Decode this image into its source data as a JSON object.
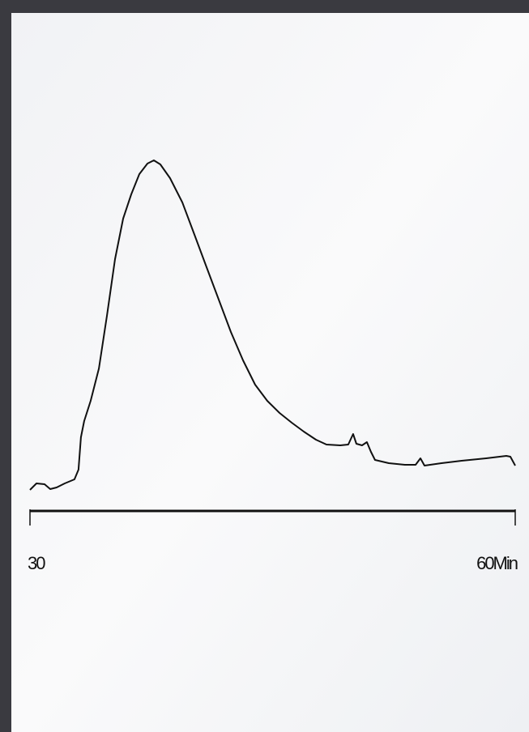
{
  "chart_data": {
    "type": "line",
    "x": [
      30.0,
      30.4,
      30.9,
      31.25,
      31.65,
      32.15,
      32.75,
      33.0,
      33.15,
      33.35,
      33.75,
      34.26,
      34.76,
      35.26,
      35.76,
      36.26,
      36.76,
      37.26,
      37.66,
      38.06,
      38.66,
      39.42,
      40.17,
      40.92,
      41.67,
      42.42,
      43.17,
      43.92,
      44.67,
      45.43,
      46.18,
      46.93,
      47.68,
      48.33,
      49.18,
      49.68,
      49.98,
      50.18,
      50.53,
      50.83,
      51.08,
      51.33,
      52.18,
      53.18,
      53.84,
      54.14,
      54.39,
      55.44,
      56.69,
      58.2,
      59.45,
      59.7,
      60.0
    ],
    "values": [
      5.2,
      6.8,
      6.6,
      5.4,
      5.8,
      6.8,
      7.8,
      10.2,
      18.2,
      22.2,
      27.2,
      35.2,
      48.2,
      62.2,
      72.2,
      78.2,
      83.2,
      85.8,
      86.6,
      85.6,
      82.2,
      76.2,
      68.2,
      60.2,
      52.2,
      44.2,
      37.2,
      31.2,
      27.2,
      24.2,
      21.8,
      19.6,
      17.6,
      16.4,
      16.2,
      16.4,
      19.0,
      16.6,
      16.2,
      17.0,
      14.6,
      12.6,
      11.8,
      11.4,
      11.4,
      13.0,
      11.2,
      11.8,
      12.4,
      13.0,
      13.6,
      13.4,
      11.2
    ],
    "color": "#111111",
    "xlim": [
      30,
      60
    ],
    "xticks": [
      30,
      {
        "value": 60,
        "label": "60Min"
      }
    ],
    "ylim": [
      0,
      100
    ]
  }
}
